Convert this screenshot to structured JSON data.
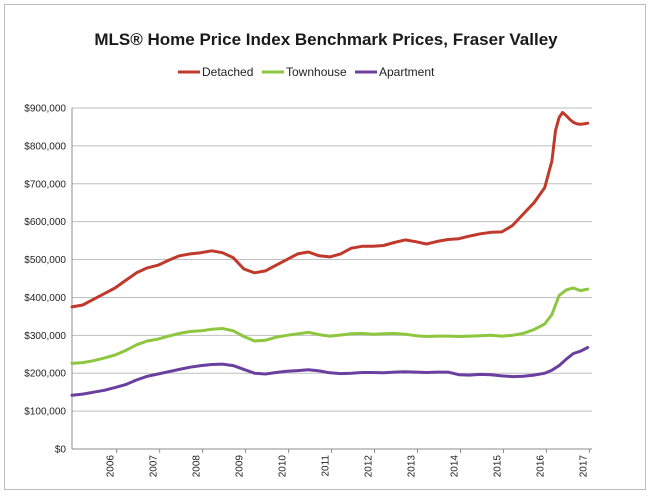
{
  "chart_data": {
    "type": "line",
    "title": "MLS® Home Price Index Benchmark Prices, Fraser Valley",
    "xlabel": "",
    "ylabel": "",
    "ylim": [
      0,
      900000
    ],
    "y_ticks": [
      "$0",
      "$100,000",
      "$200,000",
      "$300,000",
      "$400,000",
      "$500,000",
      "$600,000",
      "$700,000",
      "$800,000",
      "$900,000"
    ],
    "x_ticks": [
      "2006",
      "2007",
      "2008",
      "2009",
      "2010",
      "2011",
      "2012",
      "2013",
      "2014",
      "2015",
      "2016",
      "2017"
    ],
    "xlim": [
      2005.0,
      2017.1
    ],
    "grid": "horizontal",
    "legend_position": "top",
    "colors": {
      "Detached": "#c0392b",
      "Townhouse": "#8dc63f",
      "Apartment": "#6b3fa0"
    },
    "series": [
      {
        "name": "Detached",
        "x": [
          "2005-01",
          "2005-04",
          "2005-07",
          "2005-10",
          "2006-01",
          "2006-04",
          "2006-07",
          "2006-10",
          "2007-01",
          "2007-04",
          "2007-07",
          "2007-10",
          "2008-01",
          "2008-04",
          "2008-07",
          "2008-10",
          "2009-01",
          "2009-04",
          "2009-07",
          "2009-10",
          "2010-01",
          "2010-04",
          "2010-07",
          "2010-10",
          "2011-01",
          "2011-04",
          "2011-07",
          "2011-10",
          "2012-01",
          "2012-04",
          "2012-07",
          "2012-10",
          "2013-01",
          "2013-04",
          "2013-07",
          "2013-10",
          "2014-01",
          "2014-04",
          "2014-07",
          "2014-10",
          "2015-01",
          "2015-04",
          "2015-07",
          "2015-10",
          "2016-01",
          "2016-03",
          "2016-04",
          "2016-05",
          "2016-06",
          "2016-07",
          "2016-08",
          "2016-09",
          "2016-10",
          "2016-11",
          "2016-12",
          "2017-01"
        ],
        "values": [
          375000,
          380000,
          395000,
          410000,
          425000,
          445000,
          465000,
          478000,
          485000,
          498000,
          510000,
          515000,
          518000,
          523000,
          518000,
          505000,
          475000,
          465000,
          470000,
          485000,
          500000,
          515000,
          520000,
          510000,
          507000,
          515000,
          530000,
          535000,
          535000,
          537000,
          545000,
          552000,
          547000,
          541000,
          548000,
          553000,
          555000,
          562000,
          568000,
          572000,
          573000,
          590000,
          620000,
          650000,
          690000,
          760000,
          840000,
          875000,
          888000,
          880000,
          870000,
          862000,
          858000,
          857000,
          858000,
          860000
        ]
      },
      {
        "name": "Townhouse",
        "x": [
          "2005-01",
          "2005-04",
          "2005-07",
          "2005-10",
          "2006-01",
          "2006-04",
          "2006-07",
          "2006-10",
          "2007-01",
          "2007-04",
          "2007-07",
          "2007-10",
          "2008-01",
          "2008-04",
          "2008-07",
          "2008-10",
          "2009-01",
          "2009-04",
          "2009-07",
          "2009-10",
          "2010-01",
          "2010-04",
          "2010-07",
          "2010-10",
          "2011-01",
          "2011-04",
          "2011-07",
          "2011-10",
          "2012-01",
          "2012-04",
          "2012-07",
          "2012-10",
          "2013-01",
          "2013-04",
          "2013-07",
          "2013-10",
          "2014-01",
          "2014-04",
          "2014-07",
          "2014-10",
          "2015-01",
          "2015-04",
          "2015-07",
          "2015-10",
          "2016-01",
          "2016-03",
          "2016-05",
          "2016-07",
          "2016-09",
          "2016-11",
          "2017-01"
        ],
        "values": [
          226000,
          228000,
          233000,
          240000,
          248000,
          260000,
          275000,
          285000,
          290000,
          298000,
          305000,
          310000,
          312000,
          316000,
          318000,
          312000,
          297000,
          285000,
          287000,
          295000,
          300000,
          304000,
          308000,
          302000,
          298000,
          301000,
          304000,
          305000,
          303000,
          304000,
          305000,
          303000,
          299000,
          297000,
          298000,
          298000,
          297000,
          298000,
          299000,
          300000,
          298000,
          300000,
          305000,
          315000,
          330000,
          355000,
          405000,
          420000,
          425000,
          418000,
          422000
        ]
      },
      {
        "name": "Apartment",
        "x": [
          "2005-01",
          "2005-04",
          "2005-07",
          "2005-10",
          "2006-01",
          "2006-04",
          "2006-07",
          "2006-10",
          "2007-01",
          "2007-04",
          "2007-07",
          "2007-10",
          "2008-01",
          "2008-04",
          "2008-07",
          "2008-10",
          "2009-01",
          "2009-04",
          "2009-07",
          "2009-10",
          "2010-01",
          "2010-04",
          "2010-07",
          "2010-10",
          "2011-01",
          "2011-04",
          "2011-07",
          "2011-10",
          "2012-01",
          "2012-04",
          "2012-07",
          "2012-10",
          "2013-01",
          "2013-04",
          "2013-07",
          "2013-10",
          "2014-01",
          "2014-04",
          "2014-07",
          "2014-10",
          "2015-01",
          "2015-04",
          "2015-07",
          "2015-10",
          "2016-01",
          "2016-03",
          "2016-05",
          "2016-07",
          "2016-09",
          "2016-11",
          "2017-01"
        ],
        "values": [
          142000,
          145000,
          150000,
          155000,
          162000,
          170000,
          182000,
          192000,
          198000,
          204000,
          210000,
          216000,
          220000,
          223000,
          224000,
          220000,
          210000,
          200000,
          198000,
          202000,
          205000,
          207000,
          209000,
          206000,
          201000,
          199000,
          200000,
          202000,
          202000,
          201000,
          203000,
          204000,
          203000,
          202000,
          203000,
          203000,
          196000,
          195000,
          197000,
          196000,
          193000,
          191000,
          192000,
          195000,
          200000,
          208000,
          220000,
          237000,
          252000,
          258000,
          268000
        ]
      }
    ]
  }
}
